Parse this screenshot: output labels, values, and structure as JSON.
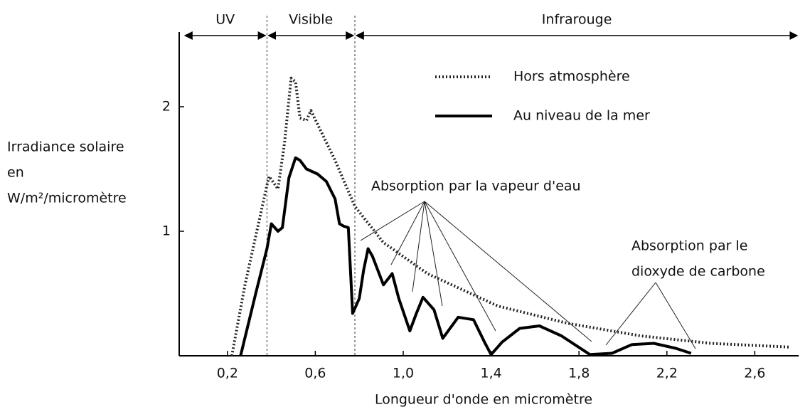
{
  "chart_data": {
    "type": "line",
    "xlabel": "Longueur d'onde en micromètre",
    "ylabel": [
      "Irradiance solaire",
      "en",
      "W/m²/micromètre"
    ],
    "xlim": [
      0,
      2.8
    ],
    "ylim": [
      0,
      2.6
    ],
    "xticks": [
      {
        "value": 0.2,
        "label": "0,2"
      },
      {
        "value": 0.6,
        "label": "0,6"
      },
      {
        "value": 1.0,
        "label": "1,0"
      },
      {
        "value": 1.4,
        "label": "1,4"
      },
      {
        "value": 1.8,
        "label": "1,8"
      },
      {
        "value": 2.2,
        "label": "2,2"
      },
      {
        "value": 2.6,
        "label": "2,6"
      }
    ],
    "yticks": [
      1,
      2
    ],
    "bands": [
      {
        "label": "UV",
        "from": 0,
        "to": 0.38
      },
      {
        "label": "Visible",
        "from": 0.38,
        "to": 0.78
      },
      {
        "label": "Infrarouge",
        "from": 0.78,
        "to": 2.8
      }
    ],
    "series": [
      {
        "name": "Hors atmosphère",
        "color": "#222222",
        "style": "dotted",
        "x": [
          0.22,
          0.28,
          0.38,
          0.39,
          0.43,
          0.46,
          0.49,
          0.51,
          0.53,
          0.56,
          0.58,
          0.61,
          0.69,
          0.78,
          0.91,
          1.11,
          1.43,
          1.75,
          2.08,
          2.4,
          2.76
        ],
        "values": [
          0,
          0.57,
          1.37,
          1.44,
          1.34,
          1.71,
          2.23,
          2.2,
          1.91,
          1.89,
          1.97,
          1.86,
          1.57,
          1.2,
          0.91,
          0.66,
          0.4,
          0.26,
          0.16,
          0.1,
          0.07
        ]
      },
      {
        "name": "Au niveau de la mer",
        "color": "#000000",
        "style": "solid",
        "x": [
          0.26,
          0.33,
          0.38,
          0.4,
          0.43,
          0.45,
          0.48,
          0.51,
          0.53,
          0.56,
          0.61,
          0.65,
          0.69,
          0.71,
          0.73,
          0.75,
          0.76,
          0.77,
          0.8,
          0.82,
          0.84,
          0.86,
          0.91,
          0.95,
          0.98,
          1.03,
          1.06,
          1.09,
          1.14,
          1.18,
          1.25,
          1.32,
          1.37,
          1.4,
          1.45,
          1.53,
          1.62,
          1.72,
          1.85,
          1.95,
          2.04,
          2.14,
          2.24,
          2.31
        ],
        "values": [
          0,
          0.51,
          0.86,
          1.06,
          1.0,
          1.03,
          1.43,
          1.59,
          1.57,
          1.5,
          1.46,
          1.4,
          1.26,
          1.06,
          1.04,
          1.03,
          0.69,
          0.34,
          0.46,
          0.69,
          0.86,
          0.8,
          0.57,
          0.66,
          0.46,
          0.2,
          0.34,
          0.47,
          0.37,
          0.14,
          0.31,
          0.29,
          0.11,
          0.01,
          0.11,
          0.22,
          0.24,
          0.16,
          0.01,
          0.02,
          0.09,
          0.1,
          0.06,
          0.02
        ]
      }
    ],
    "annotations": [
      {
        "text": [
          "Absorption par la vapeur d'eau"
        ]
      },
      {
        "text": [
          "Absorption par le",
          "dioxyde de carbone"
        ]
      }
    ]
  }
}
